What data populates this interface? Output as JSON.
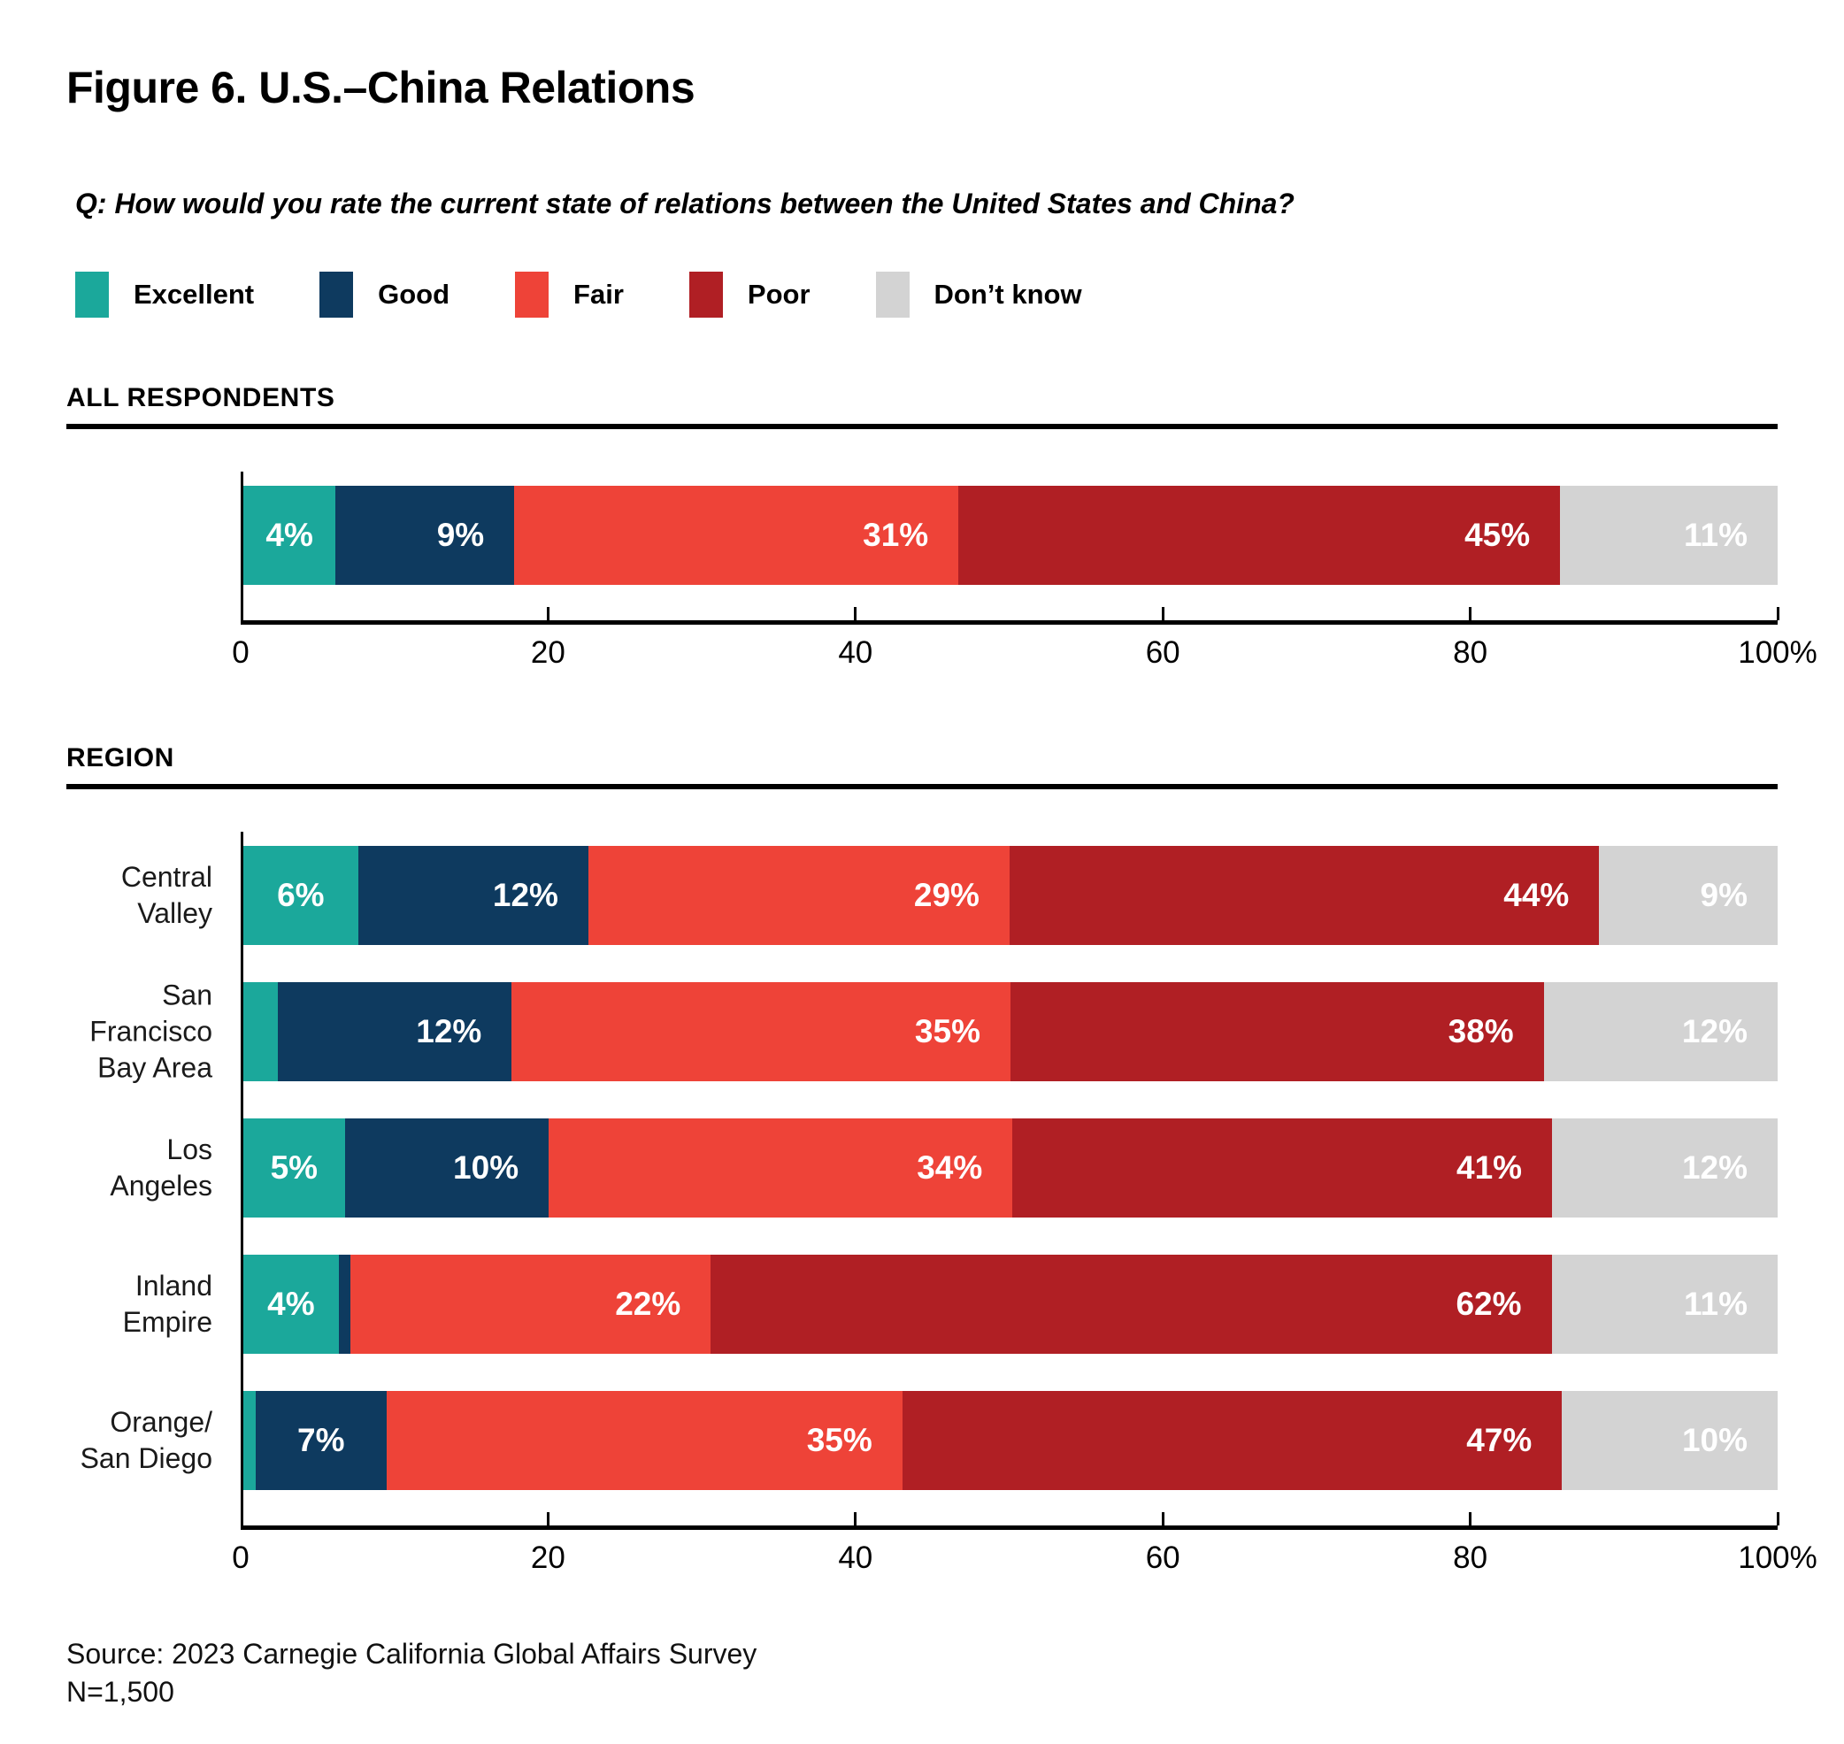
{
  "page": {
    "title": "Figure 6. U.S.–China Relations",
    "question": "Q: How would you rate the current state of relations between the United States and China?",
    "source": "Source: 2023 Carnegie California Global Affairs Survey",
    "n": "N=1,500"
  },
  "series_colors": {
    "Excellent": "#1BA89B",
    "Good": "#0E3A5F",
    "Fair": "#EE4338",
    "Poor": "#B01F24",
    "Don’t know": "#D3D3D3"
  },
  "legend": {
    "items": [
      {
        "label": "Excellent"
      },
      {
        "label": "Good"
      },
      {
        "label": "Fair"
      },
      {
        "label": "Poor"
      },
      {
        "label": "Don’t know"
      }
    ]
  },
  "chart_data": [
    {
      "type": "bar",
      "orientation": "horizontal-stacked",
      "section_heading": "ALL RESPONDENTS",
      "xlim": [
        0,
        100
      ],
      "grid": false,
      "legend_position": "top",
      "x_ticks": [
        0,
        20,
        40,
        60,
        80,
        100
      ],
      "x_tick_labels": [
        "0",
        "20",
        "40",
        "60",
        "80",
        "100%"
      ],
      "series_order": [
        "Excellent",
        "Good",
        "Fair",
        "Poor",
        "Don’t know"
      ],
      "rows": [
        {
          "category": "All respondents",
          "category_lines": [],
          "segments": [
            {
              "series": "Excellent",
              "value": 4,
              "label": "4%"
            },
            {
              "series": "Good",
              "value": 9,
              "label": "9%"
            },
            {
              "series": "Fair",
              "value": 31,
              "label": "31%"
            },
            {
              "series": "Poor",
              "value": 45,
              "label": "45%"
            },
            {
              "series": "Don’t know",
              "value": 11,
              "label": "11%"
            }
          ]
        }
      ]
    },
    {
      "type": "bar",
      "orientation": "horizontal-stacked",
      "section_heading": "REGION",
      "xlim": [
        0,
        100
      ],
      "grid": false,
      "x_ticks": [
        0,
        20,
        40,
        60,
        80,
        100
      ],
      "x_tick_labels": [
        "0",
        "20",
        "40",
        "60",
        "80",
        "100%"
      ],
      "series_order": [
        "Excellent",
        "Good",
        "Fair",
        "Poor",
        "Don’t know"
      ],
      "rows": [
        {
          "category": "Central Valley",
          "category_lines": [
            "Central Valley"
          ],
          "segments": [
            {
              "series": "Excellent",
              "value": 6,
              "label": "6%"
            },
            {
              "series": "Good",
              "value": 12,
              "label": "12%"
            },
            {
              "series": "Fair",
              "value": 29,
              "label": "29%"
            },
            {
              "series": "Poor",
              "value": 44,
              "label": "44%"
            },
            {
              "series": "Don’t know",
              "value": 9,
              "label": "9%"
            }
          ]
        },
        {
          "category": "San Francisco Bay Area",
          "category_lines": [
            "San Francisco",
            "Bay Area"
          ],
          "segments": [
            {
              "series": "Excellent",
              "value": 3,
              "label": ""
            },
            {
              "series": "Good",
              "value": 12,
              "label": "12%"
            },
            {
              "series": "Fair",
              "value": 35,
              "label": "35%"
            },
            {
              "series": "Poor",
              "value": 38,
              "label": "38%"
            },
            {
              "series": "Don’t know",
              "value": 12,
              "label": "12%"
            }
          ]
        },
        {
          "category": "Los Angeles",
          "category_lines": [
            "Los Angeles"
          ],
          "segments": [
            {
              "series": "Excellent",
              "value": 5,
              "label": "5%"
            },
            {
              "series": "Good",
              "value": 10,
              "label": "10%"
            },
            {
              "series": "Fair",
              "value": 34,
              "label": "34%"
            },
            {
              "series": "Poor",
              "value": 41,
              "label": "41%"
            },
            {
              "series": "Don’t know",
              "value": 12,
              "label": "12%"
            }
          ]
        },
        {
          "category": "Inland Empire",
          "category_lines": [
            "Inland Empire"
          ],
          "segments": [
            {
              "series": "Excellent",
              "value": 4,
              "label": "4%"
            },
            {
              "series": "Good",
              "value": 1,
              "label": ""
            },
            {
              "series": "Fair",
              "value": 22,
              "label": "22%"
            },
            {
              "series": "Poor",
              "value": 62,
              "label": "62%"
            },
            {
              "series": "Don’t know",
              "value": 11,
              "label": "11%"
            }
          ]
        },
        {
          "category": "Orange/San Diego",
          "category_lines": [
            "Orange/",
            "San Diego"
          ],
          "segments": [
            {
              "series": "Excellent",
              "value": 1,
              "label": ""
            },
            {
              "series": "Good",
              "value": 7,
              "label": "7%"
            },
            {
              "series": "Fair",
              "value": 35,
              "label": "35%"
            },
            {
              "series": "Poor",
              "value": 47,
              "label": "47%"
            },
            {
              "series": "Don’t know",
              "value": 10,
              "label": "10%"
            }
          ]
        }
      ]
    }
  ]
}
